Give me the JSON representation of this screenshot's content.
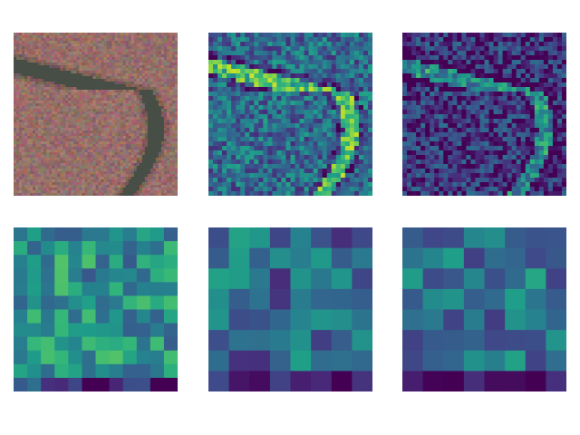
{
  "figure": {
    "colormap": "viridis",
    "panels": [
      {
        "id": "p-photo",
        "kind": "rgb-image"
      },
      {
        "id": "p-fine1",
        "kind": "heatmap",
        "grid": 36,
        "seed": 11,
        "bias": 0.35
      },
      {
        "id": "p-fine2",
        "kind": "heatmap",
        "grid": 36,
        "seed": 23,
        "bias": 0.15
      },
      {
        "id": "p-mid",
        "kind": "heatmap",
        "grid": 12,
        "seed": 37,
        "bias": 0.5
      },
      {
        "id": "p-coarse1",
        "kind": "heatmap",
        "grid": 8,
        "seed": 41,
        "bias": 0.35
      },
      {
        "id": "p-coarse2",
        "kind": "heatmap",
        "grid": 8,
        "seed": 53,
        "bias": 0.4
      }
    ]
  }
}
